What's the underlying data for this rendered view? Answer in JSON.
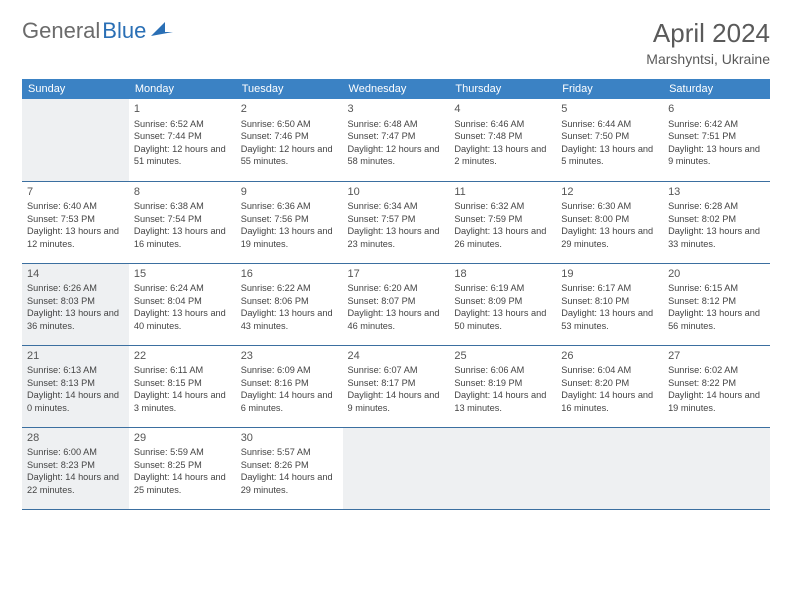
{
  "logo": {
    "text1": "General",
    "text2": "Blue"
  },
  "title": "April 2024",
  "location": "Marshyntsi, Ukraine",
  "colors": {
    "header_bg": "#3b82c4",
    "header_text": "#ffffff",
    "border": "#3b6fa0",
    "shaded": "#eef0f2",
    "logo_gray": "#6b6b6b",
    "logo_blue": "#2a6fb5"
  },
  "dayNames": [
    "Sunday",
    "Monday",
    "Tuesday",
    "Wednesday",
    "Thursday",
    "Friday",
    "Saturday"
  ],
  "weeks": [
    [
      {
        "n": "",
        "shaded": true
      },
      {
        "n": "1",
        "sr": "6:52 AM",
        "ss": "7:44 PM",
        "dl": "12 hours and 51 minutes."
      },
      {
        "n": "2",
        "sr": "6:50 AM",
        "ss": "7:46 PM",
        "dl": "12 hours and 55 minutes."
      },
      {
        "n": "3",
        "sr": "6:48 AM",
        "ss": "7:47 PM",
        "dl": "12 hours and 58 minutes."
      },
      {
        "n": "4",
        "sr": "6:46 AM",
        "ss": "7:48 PM",
        "dl": "13 hours and 2 minutes."
      },
      {
        "n": "5",
        "sr": "6:44 AM",
        "ss": "7:50 PM",
        "dl": "13 hours and 5 minutes."
      },
      {
        "n": "6",
        "sr": "6:42 AM",
        "ss": "7:51 PM",
        "dl": "13 hours and 9 minutes."
      }
    ],
    [
      {
        "n": "7",
        "sr": "6:40 AM",
        "ss": "7:53 PM",
        "dl": "13 hours and 12 minutes."
      },
      {
        "n": "8",
        "sr": "6:38 AM",
        "ss": "7:54 PM",
        "dl": "13 hours and 16 minutes."
      },
      {
        "n": "9",
        "sr": "6:36 AM",
        "ss": "7:56 PM",
        "dl": "13 hours and 19 minutes."
      },
      {
        "n": "10",
        "sr": "6:34 AM",
        "ss": "7:57 PM",
        "dl": "13 hours and 23 minutes."
      },
      {
        "n": "11",
        "sr": "6:32 AM",
        "ss": "7:59 PM",
        "dl": "13 hours and 26 minutes."
      },
      {
        "n": "12",
        "sr": "6:30 AM",
        "ss": "8:00 PM",
        "dl": "13 hours and 29 minutes."
      },
      {
        "n": "13",
        "sr": "6:28 AM",
        "ss": "8:02 PM",
        "dl": "13 hours and 33 minutes."
      }
    ],
    [
      {
        "n": "14",
        "sr": "6:26 AM",
        "ss": "8:03 PM",
        "dl": "13 hours and 36 minutes.",
        "shaded": true
      },
      {
        "n": "15",
        "sr": "6:24 AM",
        "ss": "8:04 PM",
        "dl": "13 hours and 40 minutes."
      },
      {
        "n": "16",
        "sr": "6:22 AM",
        "ss": "8:06 PM",
        "dl": "13 hours and 43 minutes."
      },
      {
        "n": "17",
        "sr": "6:20 AM",
        "ss": "8:07 PM",
        "dl": "13 hours and 46 minutes."
      },
      {
        "n": "18",
        "sr": "6:19 AM",
        "ss": "8:09 PM",
        "dl": "13 hours and 50 minutes."
      },
      {
        "n": "19",
        "sr": "6:17 AM",
        "ss": "8:10 PM",
        "dl": "13 hours and 53 minutes."
      },
      {
        "n": "20",
        "sr": "6:15 AM",
        "ss": "8:12 PM",
        "dl": "13 hours and 56 minutes."
      }
    ],
    [
      {
        "n": "21",
        "sr": "6:13 AM",
        "ss": "8:13 PM",
        "dl": "14 hours and 0 minutes.",
        "shaded": true
      },
      {
        "n": "22",
        "sr": "6:11 AM",
        "ss": "8:15 PM",
        "dl": "14 hours and 3 minutes."
      },
      {
        "n": "23",
        "sr": "6:09 AM",
        "ss": "8:16 PM",
        "dl": "14 hours and 6 minutes."
      },
      {
        "n": "24",
        "sr": "6:07 AM",
        "ss": "8:17 PM",
        "dl": "14 hours and 9 minutes."
      },
      {
        "n": "25",
        "sr": "6:06 AM",
        "ss": "8:19 PM",
        "dl": "14 hours and 13 minutes."
      },
      {
        "n": "26",
        "sr": "6:04 AM",
        "ss": "8:20 PM",
        "dl": "14 hours and 16 minutes."
      },
      {
        "n": "27",
        "sr": "6:02 AM",
        "ss": "8:22 PM",
        "dl": "14 hours and 19 minutes."
      }
    ],
    [
      {
        "n": "28",
        "sr": "6:00 AM",
        "ss": "8:23 PM",
        "dl": "14 hours and 22 minutes.",
        "shaded": true
      },
      {
        "n": "29",
        "sr": "5:59 AM",
        "ss": "8:25 PM",
        "dl": "14 hours and 25 minutes."
      },
      {
        "n": "30",
        "sr": "5:57 AM",
        "ss": "8:26 PM",
        "dl": "14 hours and 29 minutes."
      },
      {
        "n": "",
        "shaded": true
      },
      {
        "n": "",
        "shaded": true
      },
      {
        "n": "",
        "shaded": true
      },
      {
        "n": "",
        "shaded": true
      }
    ]
  ],
  "labels": {
    "sunrise": "Sunrise:",
    "sunset": "Sunset:",
    "daylight": "Daylight:"
  }
}
